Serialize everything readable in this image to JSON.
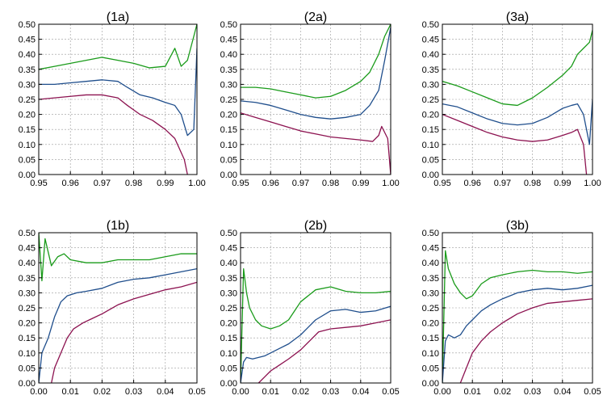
{
  "chart_data": [
    {
      "type": "line",
      "title": "(1a)",
      "xlim": [
        0.95,
        1.0
      ],
      "ylim": [
        0.0,
        0.5
      ],
      "xticks": [
        "0.95",
        "0.96",
        "0.97",
        "0.98",
        "0.99",
        "1.00"
      ],
      "yticks": [
        "0.00",
        "0.05",
        "0.10",
        "0.15",
        "0.20",
        "0.25",
        "0.30",
        "0.35",
        "0.40",
        "0.45",
        "0.50"
      ],
      "grid": true,
      "series": [
        {
          "color": "#1a9b1a",
          "x": [
            0.95,
            0.955,
            0.96,
            0.965,
            0.97,
            0.975,
            0.98,
            0.985,
            0.99,
            0.993,
            0.995,
            0.997,
            0.999,
            1.0
          ],
          "y": [
            0.35,
            0.36,
            0.37,
            0.38,
            0.39,
            0.38,
            0.37,
            0.355,
            0.36,
            0.42,
            0.36,
            0.38,
            0.46,
            0.5
          ]
        },
        {
          "color": "#1f4e8c",
          "x": [
            0.95,
            0.955,
            0.96,
            0.965,
            0.97,
            0.975,
            0.978,
            0.982,
            0.986,
            0.99,
            0.993,
            0.995,
            0.997,
            0.999,
            1.0
          ],
          "y": [
            0.3,
            0.3,
            0.305,
            0.31,
            0.315,
            0.31,
            0.29,
            0.265,
            0.255,
            0.24,
            0.23,
            0.2,
            0.13,
            0.15,
            0.42
          ]
        },
        {
          "color": "#8c1250",
          "x": [
            0.95,
            0.955,
            0.96,
            0.965,
            0.97,
            0.975,
            0.978,
            0.982,
            0.986,
            0.99,
            0.993,
            0.996,
            0.997
          ],
          "y": [
            0.25,
            0.255,
            0.26,
            0.265,
            0.265,
            0.255,
            0.23,
            0.2,
            0.18,
            0.15,
            0.12,
            0.05,
            0.0
          ]
        }
      ]
    },
    {
      "type": "line",
      "title": "(2a)",
      "xlim": [
        0.95,
        1.0
      ],
      "ylim": [
        0.0,
        0.5
      ],
      "xticks": [
        "0.95",
        "0.96",
        "0.97",
        "0.98",
        "0.99",
        "1.00"
      ],
      "yticks": [
        "0.00",
        "0.05",
        "0.10",
        "0.15",
        "0.20",
        "0.25",
        "0.30",
        "0.35",
        "0.40",
        "0.45",
        "0.50"
      ],
      "grid": true,
      "series": [
        {
          "color": "#1a9b1a",
          "x": [
            0.95,
            0.955,
            0.96,
            0.965,
            0.97,
            0.975,
            0.98,
            0.985,
            0.99,
            0.993,
            0.996,
            0.998,
            1.0
          ],
          "y": [
            0.29,
            0.29,
            0.285,
            0.275,
            0.265,
            0.255,
            0.26,
            0.28,
            0.31,
            0.34,
            0.4,
            0.46,
            0.5
          ]
        },
        {
          "color": "#1f4e8c",
          "x": [
            0.95,
            0.955,
            0.96,
            0.965,
            0.97,
            0.975,
            0.98,
            0.985,
            0.99,
            0.993,
            0.996,
            0.998,
            1.0
          ],
          "y": [
            0.245,
            0.24,
            0.23,
            0.215,
            0.2,
            0.19,
            0.185,
            0.19,
            0.2,
            0.23,
            0.28,
            0.38,
            0.49
          ]
        },
        {
          "color": "#8c1250",
          "x": [
            0.95,
            0.955,
            0.96,
            0.965,
            0.97,
            0.975,
            0.98,
            0.985,
            0.99,
            0.994,
            0.996,
            0.997,
            0.999,
            1.0
          ],
          "y": [
            0.205,
            0.19,
            0.175,
            0.16,
            0.145,
            0.135,
            0.125,
            0.12,
            0.115,
            0.11,
            0.13,
            0.16,
            0.12,
            0.0
          ]
        }
      ]
    },
    {
      "type": "line",
      "title": "(3a)",
      "xlim": [
        0.95,
        1.0
      ],
      "ylim": [
        0.0,
        0.5
      ],
      "xticks": [
        "0.95",
        "0.96",
        "0.97",
        "0.98",
        "0.99",
        "1.00"
      ],
      "yticks": [
        "0.00",
        "0.05",
        "0.10",
        "0.15",
        "0.20",
        "0.25",
        "0.30",
        "0.35",
        "0.40",
        "0.45",
        "0.50"
      ],
      "grid": true,
      "series": [
        {
          "color": "#1a9b1a",
          "x": [
            0.95,
            0.955,
            0.96,
            0.965,
            0.97,
            0.975,
            0.98,
            0.985,
            0.99,
            0.993,
            0.995,
            0.997,
            0.999,
            1.0
          ],
          "y": [
            0.31,
            0.295,
            0.275,
            0.255,
            0.235,
            0.23,
            0.255,
            0.29,
            0.33,
            0.36,
            0.4,
            0.42,
            0.44,
            0.48
          ]
        },
        {
          "color": "#1f4e8c",
          "x": [
            0.95,
            0.955,
            0.96,
            0.965,
            0.97,
            0.975,
            0.98,
            0.985,
            0.99,
            0.993,
            0.995,
            0.997,
            0.999,
            1.0
          ],
          "y": [
            0.235,
            0.225,
            0.205,
            0.185,
            0.17,
            0.165,
            0.17,
            0.19,
            0.22,
            0.23,
            0.235,
            0.2,
            0.1,
            0.25
          ]
        },
        {
          "color": "#8c1250",
          "x": [
            0.95,
            0.955,
            0.96,
            0.965,
            0.97,
            0.975,
            0.98,
            0.985,
            0.99,
            0.993,
            0.995,
            0.997,
            0.998
          ],
          "y": [
            0.2,
            0.18,
            0.16,
            0.14,
            0.125,
            0.115,
            0.11,
            0.115,
            0.13,
            0.14,
            0.15,
            0.1,
            0.0
          ]
        }
      ]
    },
    {
      "type": "line",
      "title": "(1b)",
      "xlim": [
        0.0,
        0.05
      ],
      "ylim": [
        0.0,
        0.5
      ],
      "xticks": [
        "0.00",
        "0.01",
        "0.02",
        "0.03",
        "0.04",
        "0.05"
      ],
      "yticks": [
        "0.00",
        "0.05",
        "0.10",
        "0.15",
        "0.20",
        "0.25",
        "0.30",
        "0.35",
        "0.40",
        "0.45",
        "0.50"
      ],
      "grid": true,
      "series": [
        {
          "color": "#1a9b1a",
          "x": [
            0.0,
            0.001,
            0.002,
            0.004,
            0.006,
            0.008,
            0.01,
            0.015,
            0.02,
            0.025,
            0.03,
            0.035,
            0.04,
            0.045,
            0.05
          ],
          "y": [
            0.5,
            0.34,
            0.48,
            0.39,
            0.42,
            0.43,
            0.41,
            0.4,
            0.4,
            0.41,
            0.41,
            0.41,
            0.42,
            0.43,
            0.43
          ]
        },
        {
          "color": "#1f4e8c",
          "x": [
            0.0,
            0.001,
            0.003,
            0.005,
            0.007,
            0.009,
            0.012,
            0.015,
            0.02,
            0.025,
            0.03,
            0.035,
            0.04,
            0.045,
            0.05
          ],
          "y": [
            0.0,
            0.1,
            0.15,
            0.22,
            0.27,
            0.29,
            0.3,
            0.305,
            0.315,
            0.335,
            0.345,
            0.35,
            0.36,
            0.37,
            0.38
          ]
        },
        {
          "color": "#8c1250",
          "x": [
            0.004,
            0.005,
            0.007,
            0.009,
            0.011,
            0.014,
            0.017,
            0.02,
            0.025,
            0.03,
            0.035,
            0.04,
            0.045,
            0.05
          ],
          "y": [
            0.0,
            0.05,
            0.1,
            0.15,
            0.18,
            0.2,
            0.215,
            0.23,
            0.26,
            0.28,
            0.295,
            0.31,
            0.32,
            0.335
          ]
        }
      ]
    },
    {
      "type": "line",
      "title": "(2b)",
      "xlim": [
        0.0,
        0.05
      ],
      "ylim": [
        0.0,
        0.5
      ],
      "xticks": [
        "0.00",
        "0.01",
        "0.02",
        "0.03",
        "0.04",
        "0.05"
      ],
      "yticks": [
        "0.00",
        "0.05",
        "0.10",
        "0.15",
        "0.20",
        "0.25",
        "0.30",
        "0.35",
        "0.40",
        "0.45",
        "0.50"
      ],
      "grid": true,
      "series": [
        {
          "color": "#1a9b1a",
          "x": [
            0.0,
            0.001,
            0.002,
            0.003,
            0.005,
            0.007,
            0.01,
            0.013,
            0.016,
            0.02,
            0.025,
            0.03,
            0.035,
            0.04,
            0.045,
            0.05
          ],
          "y": [
            0.0,
            0.38,
            0.3,
            0.25,
            0.21,
            0.19,
            0.18,
            0.19,
            0.21,
            0.27,
            0.31,
            0.32,
            0.305,
            0.3,
            0.3,
            0.305
          ]
        },
        {
          "color": "#1f4e8c",
          "x": [
            0.0,
            0.001,
            0.002,
            0.004,
            0.006,
            0.008,
            0.01,
            0.013,
            0.016,
            0.02,
            0.025,
            0.03,
            0.035,
            0.04,
            0.045,
            0.05
          ],
          "y": [
            0.0,
            0.07,
            0.085,
            0.08,
            0.085,
            0.09,
            0.1,
            0.115,
            0.13,
            0.16,
            0.21,
            0.24,
            0.245,
            0.235,
            0.24,
            0.255
          ]
        },
        {
          "color": "#8c1250",
          "x": [
            0.006,
            0.008,
            0.01,
            0.013,
            0.016,
            0.02,
            0.023,
            0.026,
            0.03,
            0.035,
            0.04,
            0.045,
            0.05
          ],
          "y": [
            0.0,
            0.02,
            0.04,
            0.06,
            0.08,
            0.11,
            0.14,
            0.17,
            0.18,
            0.185,
            0.19,
            0.2,
            0.21
          ]
        }
      ]
    },
    {
      "type": "line",
      "title": "(3b)",
      "xlim": [
        0.0,
        0.05
      ],
      "ylim": [
        0.0,
        0.5
      ],
      "xticks": [
        "0.00",
        "0.01",
        "0.02",
        "0.03",
        "0.04",
        "0.05"
      ],
      "yticks": [
        "0.00",
        "0.05",
        "0.10",
        "0.15",
        "0.20",
        "0.25",
        "0.30",
        "0.35",
        "0.40",
        "0.45",
        "0.50"
      ],
      "grid": true,
      "series": [
        {
          "color": "#1a9b1a",
          "x": [
            0.0,
            0.001,
            0.002,
            0.004,
            0.006,
            0.008,
            0.01,
            0.013,
            0.016,
            0.02,
            0.025,
            0.03,
            0.035,
            0.04,
            0.045,
            0.05
          ],
          "y": [
            0.0,
            0.44,
            0.38,
            0.33,
            0.3,
            0.28,
            0.29,
            0.33,
            0.35,
            0.36,
            0.37,
            0.375,
            0.37,
            0.37,
            0.365,
            0.37
          ]
        },
        {
          "color": "#1f4e8c",
          "x": [
            0.0,
            0.001,
            0.002,
            0.004,
            0.006,
            0.008,
            0.01,
            0.013,
            0.016,
            0.02,
            0.025,
            0.03,
            0.035,
            0.04,
            0.045,
            0.05
          ],
          "y": [
            0.0,
            0.14,
            0.16,
            0.15,
            0.16,
            0.19,
            0.21,
            0.24,
            0.26,
            0.28,
            0.3,
            0.31,
            0.315,
            0.31,
            0.315,
            0.325
          ]
        },
        {
          "color": "#8c1250",
          "x": [
            0.006,
            0.008,
            0.01,
            0.013,
            0.016,
            0.02,
            0.025,
            0.03,
            0.035,
            0.04,
            0.045,
            0.05
          ],
          "y": [
            0.0,
            0.05,
            0.1,
            0.14,
            0.17,
            0.2,
            0.23,
            0.25,
            0.265,
            0.27,
            0.275,
            0.28
          ]
        }
      ]
    }
  ]
}
